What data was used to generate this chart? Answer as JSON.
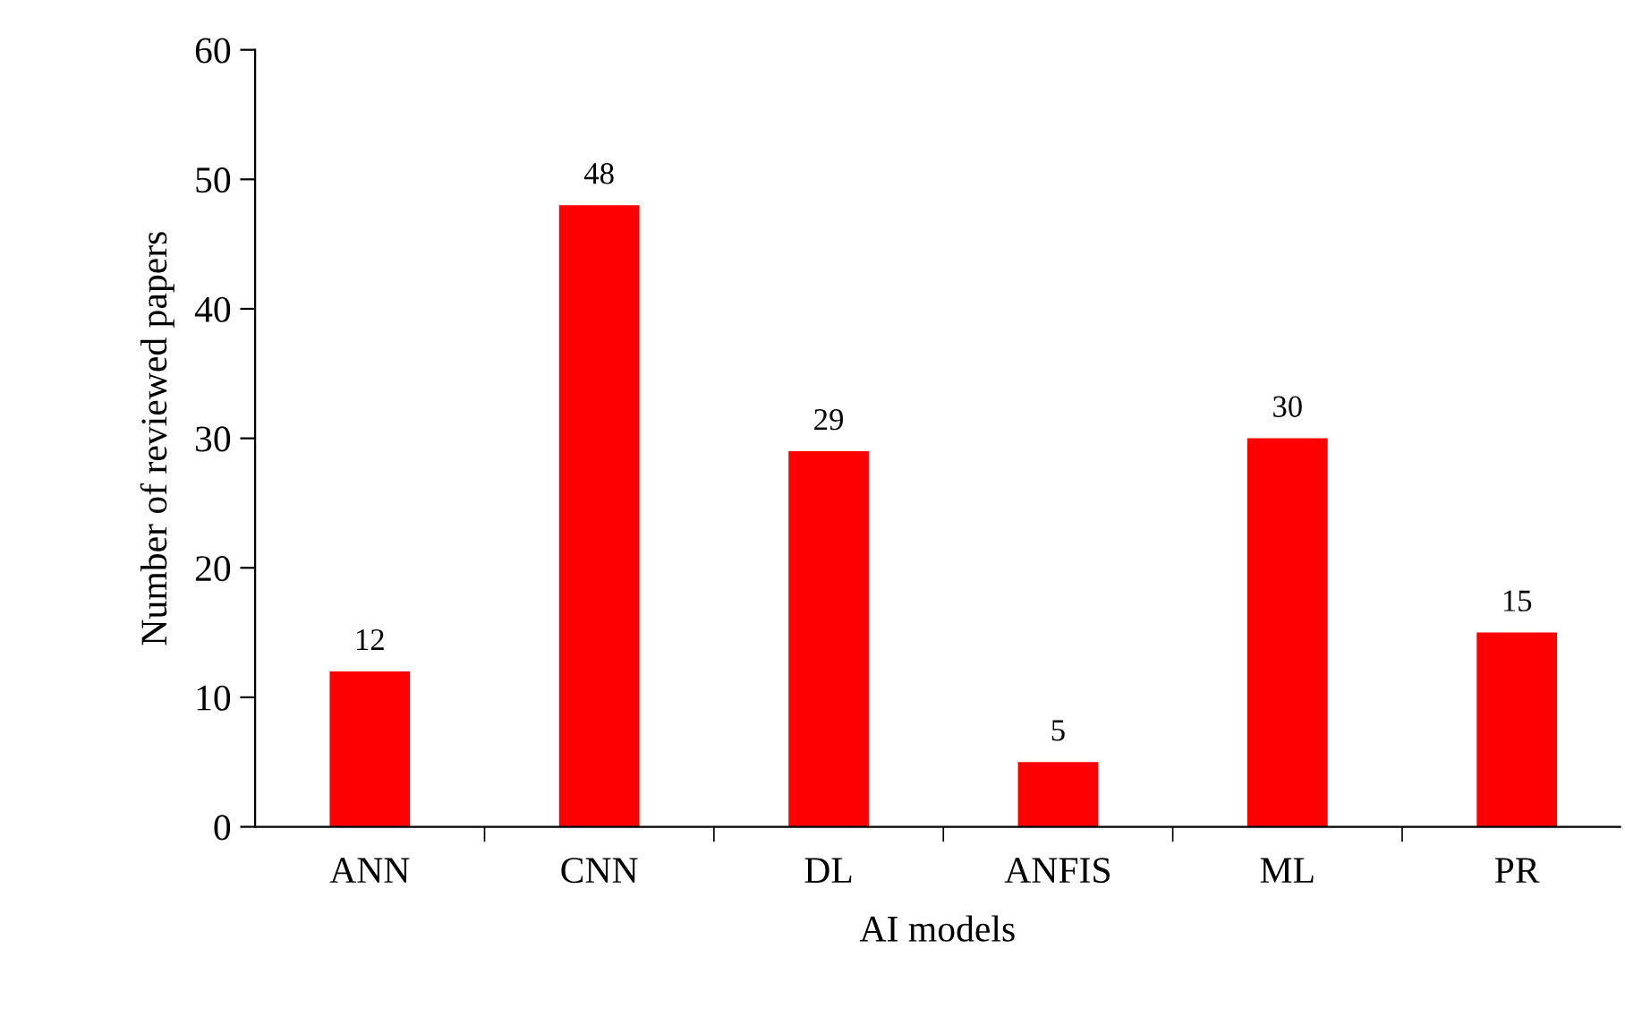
{
  "chart_data": {
    "type": "bar",
    "xlabel": "AI models",
    "ylabel": "Number of reviewed papers",
    "categories": [
      "ANN",
      "CNN",
      "DL",
      "ANFIS",
      "ML",
      "PR"
    ],
    "values": [
      12,
      48,
      29,
      5,
      30,
      15
    ],
    "color": "#ff0000",
    "ylim": [
      0,
      60
    ],
    "yticks": [
      0,
      10,
      20,
      30,
      40,
      50,
      60
    ],
    "data_labels": true,
    "grid": false,
    "legend": false
  }
}
